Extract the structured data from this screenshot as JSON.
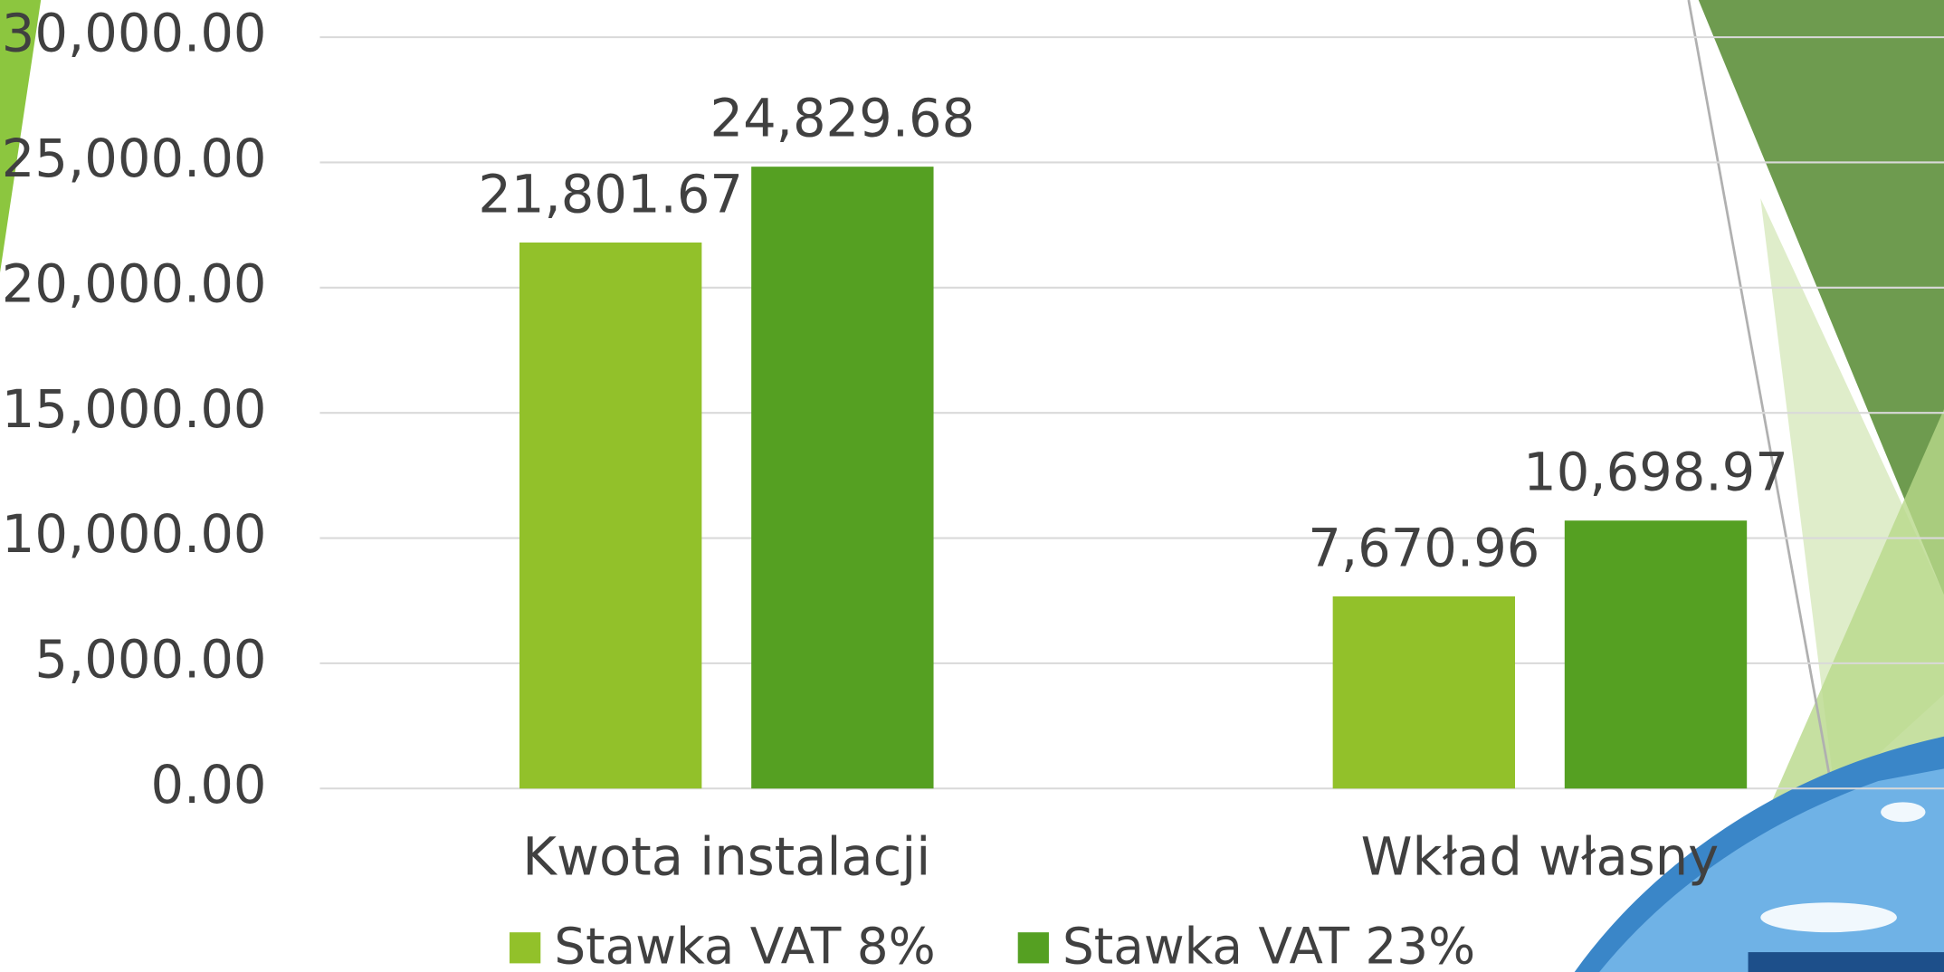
{
  "chart_data": {
    "type": "bar",
    "categories": [
      "Kwota instalacji",
      "Wkład własny"
    ],
    "series": [
      {
        "name": "Stawka VAT 8%",
        "color": "#92c12a",
        "values": [
          21801.67,
          7670.96
        ],
        "value_labels": [
          "21,801.67",
          "7,670.96"
        ]
      },
      {
        "name": "Stawka VAT 23%",
        "color": "#55a022",
        "values": [
          24829.68,
          10698.97
        ],
        "value_labels": [
          "24,829.68",
          "10,698.97"
        ]
      }
    ],
    "ylim": [
      0,
      30000
    ],
    "yticks": [
      {
        "value": 0,
        "label": "0.00"
      },
      {
        "value": 5000,
        "label": "5,000.00"
      },
      {
        "value": 10000,
        "label": "10,000.00"
      },
      {
        "value": 15000,
        "label": "15,000.00"
      },
      {
        "value": 20000,
        "label": "20,000.00"
      },
      {
        "value": 25000,
        "label": "25,000.00"
      },
      {
        "value": 30000,
        "label": "30,000.00"
      }
    ],
    "grid": true,
    "legend": "bottom"
  }
}
